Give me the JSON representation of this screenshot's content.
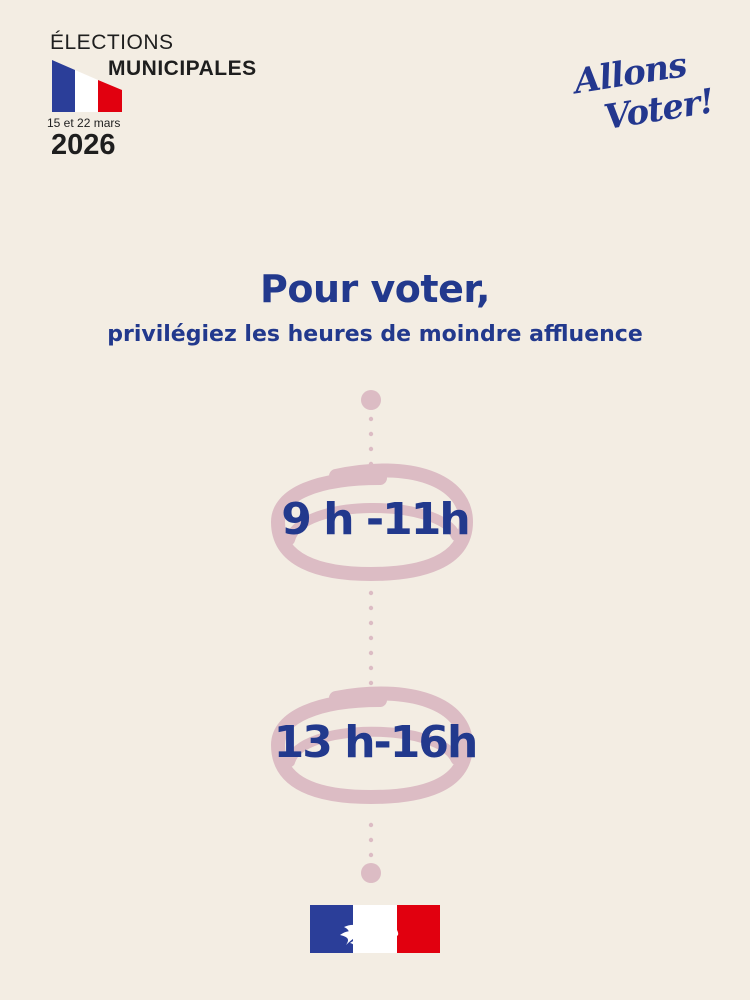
{
  "header": {
    "elections": "ÉLECTIONS",
    "municipales": "MUNICIPALES",
    "dates": "15 et 22 mars",
    "year": "2026"
  },
  "slogan": {
    "line1": "Allons",
    "line2": "Voter!"
  },
  "heading": {
    "main": "Pour voter,",
    "sub": "privilégiez les heures de moindre affluence"
  },
  "time_slots": [
    {
      "label": "9 h -11h"
    },
    {
      "label": "13 h-16h"
    }
  ],
  "colors": {
    "background": "#f3ede3",
    "brand_blue": "#22398d",
    "highlight_pink": "#dcbcc4",
    "flag_blue": "#2b3e99",
    "flag_red": "#e1000f"
  },
  "icons": {
    "header_flag": "french-flag-icon",
    "footer_logo": "marianne-republic-logo"
  }
}
